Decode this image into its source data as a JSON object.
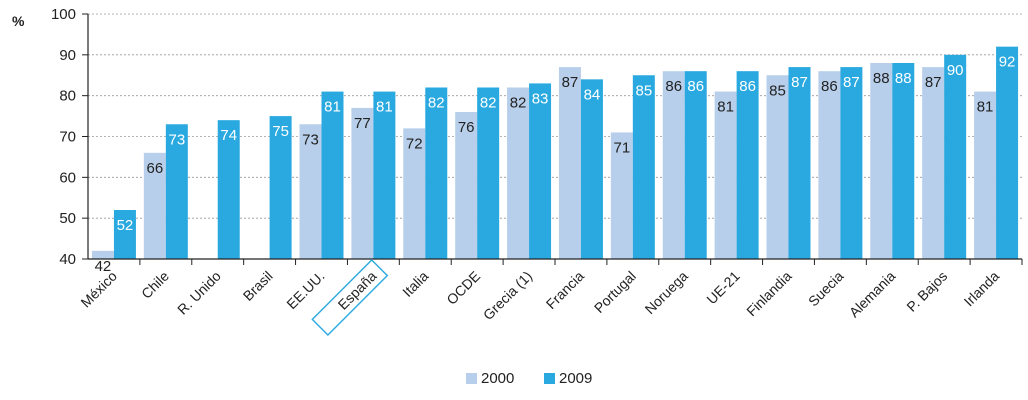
{
  "chart_data": {
    "type": "bar",
    "ylabel": "%",
    "ylim": [
      40,
      100
    ],
    "yticks": [
      40,
      50,
      60,
      70,
      80,
      90,
      100
    ],
    "grid": true,
    "legend_position": "bottom-center",
    "highlight_category": "España",
    "categories": [
      "México",
      "Chile",
      "R. Unido",
      "Brasil",
      "EE.UU.",
      "España",
      "Italia",
      "OCDE",
      "Grecia (1)",
      "Francia",
      "Portugal",
      "Noruega",
      "UE-21",
      "Finlandia",
      "Suecia",
      "Alemania",
      "P. Bajos",
      "Irlanda"
    ],
    "series": [
      {
        "name": "2000",
        "color": "#b8cfeb",
        "label_color": "#222222",
        "values": [
          42,
          66,
          null,
          null,
          73,
          77,
          72,
          76,
          82,
          87,
          71,
          86,
          81,
          85,
          86,
          88,
          87,
          81
        ]
      },
      {
        "name": "2009",
        "color": "#2aa9e0",
        "label_color": "#ffffff",
        "values": [
          52,
          73,
          74,
          75,
          81,
          81,
          82,
          82,
          83,
          84,
          85,
          86,
          86,
          87,
          87,
          88,
          90,
          92
        ]
      }
    ]
  }
}
